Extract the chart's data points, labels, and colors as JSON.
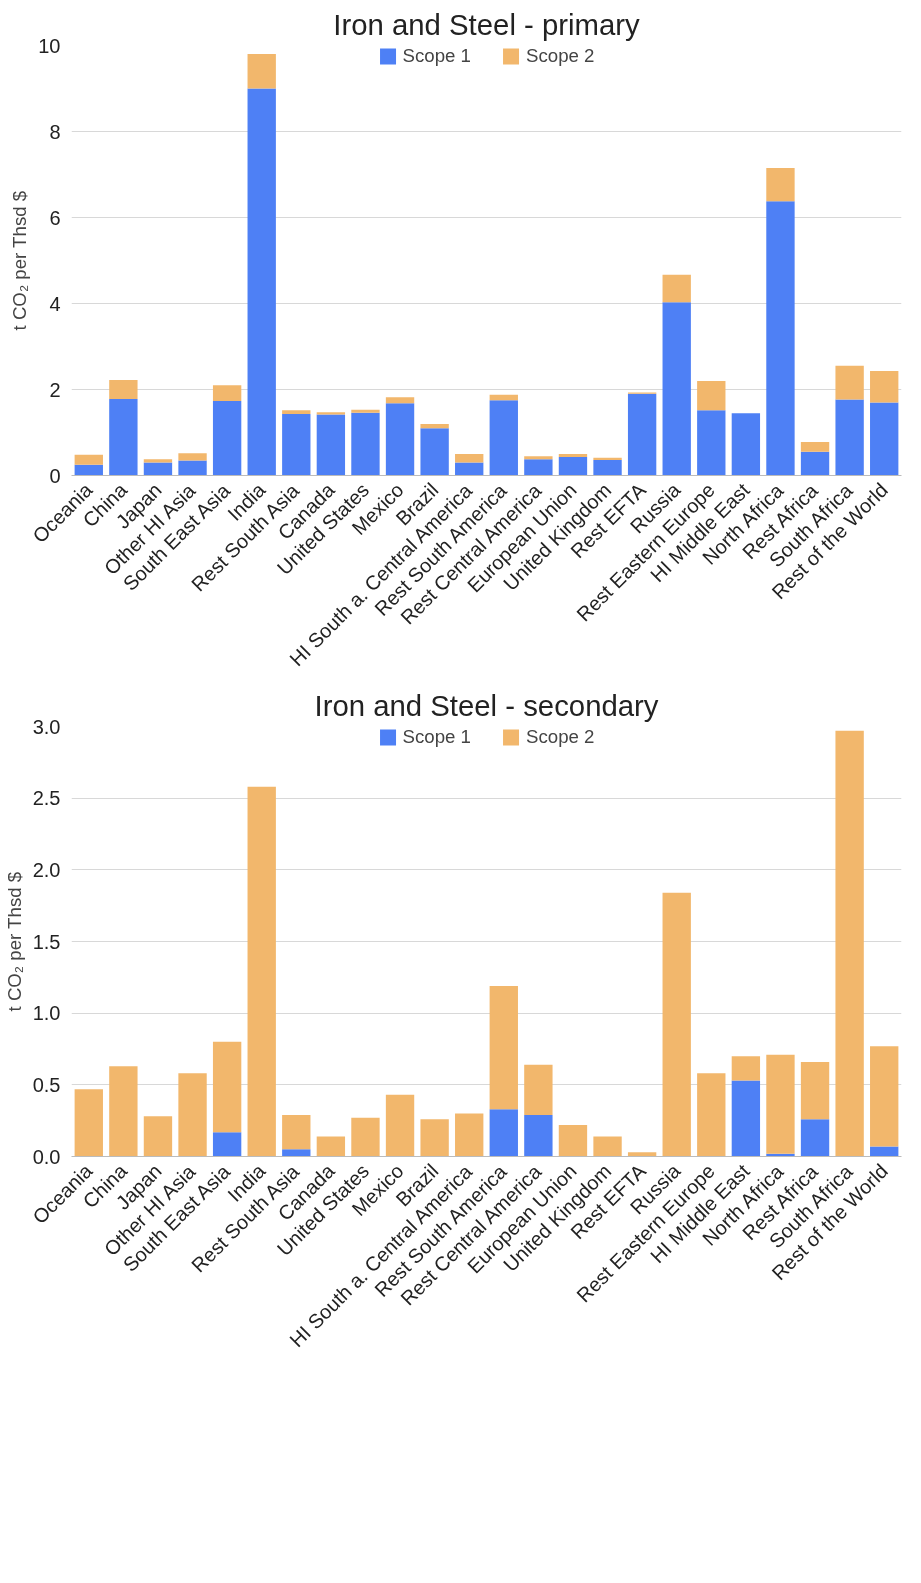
{
  "chart_data": [
    {
      "type": "bar",
      "title": "Iron and Steel - primary",
      "ylabel": "t CO₂ per Thsd $",
      "stacked": true,
      "legend": "top",
      "grid": "y",
      "categories": [
        "Oceania",
        "China",
        "Japan",
        "Other HI Asia",
        "South East Asia",
        "India",
        "Rest South Asia",
        "Canada",
        "United States",
        "Mexico",
        "Brazil",
        "HI South a. Central America",
        "Rest South America",
        "Rest Central America",
        "European Union",
        "United Kingdom",
        "Rest EFTA",
        "Russia",
        "Rest Eastern Europe",
        "HI Middle East",
        "North Africa",
        "Rest Africa",
        "South Africa",
        "Rest of the World"
      ],
      "series": [
        {
          "name": "Scope 1",
          "color": "#4e80f5",
          "values": [
            0.25,
            1.78,
            0.3,
            0.35,
            1.73,
            9.0,
            1.43,
            1.42,
            1.46,
            1.68,
            1.1,
            0.3,
            1.75,
            0.38,
            0.43,
            0.36,
            1.9,
            4.03,
            1.52,
            1.45,
            6.38,
            0.55,
            1.77,
            1.7
          ]
        },
        {
          "name": "Scope 2",
          "color": "#f2b76c",
          "values": [
            0.23,
            0.44,
            0.08,
            0.17,
            0.37,
            0.8,
            0.09,
            0.05,
            0.07,
            0.14,
            0.1,
            0.2,
            0.13,
            0.07,
            0.07,
            0.05,
            0.03,
            0.64,
            0.68,
            0,
            0.77,
            0.23,
            0.78,
            0.73
          ]
        }
      ],
      "ylim": [
        0,
        10
      ],
      "yticks": [
        0,
        2,
        4,
        6,
        8,
        10
      ]
    },
    {
      "type": "bar",
      "title": "Iron and Steel - secondary",
      "ylabel": "t CO₂ per Thsd $",
      "stacked": true,
      "legend": "top",
      "grid": "y",
      "categories": [
        "Oceania",
        "China",
        "Japan",
        "Other HI Asia",
        "South East Asia",
        "India",
        "Rest South Asia",
        "Canada",
        "United States",
        "Mexico",
        "Brazil",
        "HI South a. Central America",
        "Rest South America",
        "Rest Central America",
        "European Union",
        "United Kingdom",
        "Rest EFTA",
        "Russia",
        "Rest Eastern Europe",
        "HI Middle East",
        "North Africa",
        "Rest Africa",
        "South Africa",
        "Rest of the World"
      ],
      "series": [
        {
          "name": "Scope 1",
          "color": "#4e80f5",
          "values": [
            0,
            0,
            0,
            0,
            0.17,
            0,
            0.05,
            0,
            0,
            0,
            0,
            0,
            0.33,
            0.29,
            0,
            0,
            0,
            0,
            0,
            0.53,
            0.02,
            0.26,
            0,
            0.07
          ]
        },
        {
          "name": "Scope 2",
          "color": "#f2b76c",
          "values": [
            0.47,
            0.63,
            0.28,
            0.58,
            0.63,
            2.58,
            0.24,
            0.14,
            0.27,
            0.43,
            0.26,
            0.3,
            0.86,
            0.35,
            0.22,
            0.14,
            0.03,
            1.84,
            0.58,
            0.17,
            0.69,
            0.4,
            2.97,
            0.7
          ]
        }
      ],
      "ylim": [
        0,
        3
      ],
      "yticks": [
        {
          "value": 0,
          "label": "0.0"
        },
        {
          "value": 0.5,
          "label": "0.5"
        },
        {
          "value": 1,
          "label": "1.0"
        },
        {
          "value": 1.5,
          "label": "1.5"
        },
        {
          "value": 2,
          "label": "2.0"
        },
        {
          "value": 2.5,
          "label": "2.5"
        },
        {
          "value": 3,
          "label": "3.0"
        }
      ]
    }
  ]
}
